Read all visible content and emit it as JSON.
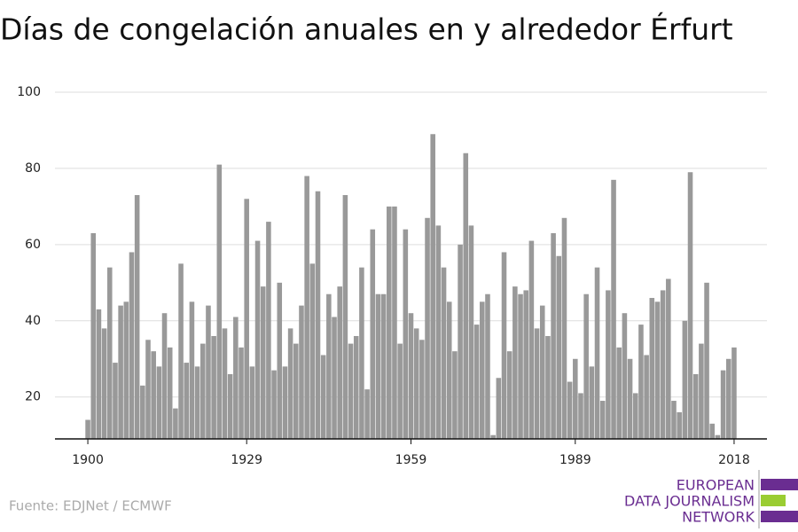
{
  "chart_data": {
    "type": "bar",
    "title": "Días de congelación anuales en y alrededor Érfurt",
    "source": "Fuente: EDJNet / ECMWF",
    "logo": [
      "EUROPEAN",
      "DATA JOURNALISM",
      "NETWORK"
    ],
    "color": "#999999",
    "x": [
      1900,
      1901,
      1902,
      1903,
      1904,
      1905,
      1906,
      1907,
      1908,
      1909,
      1910,
      1911,
      1912,
      1913,
      1914,
      1915,
      1916,
      1917,
      1918,
      1919,
      1920,
      1921,
      1922,
      1923,
      1924,
      1925,
      1926,
      1927,
      1928,
      1929,
      1930,
      1931,
      1932,
      1933,
      1934,
      1935,
      1936,
      1937,
      1938,
      1939,
      1940,
      1941,
      1942,
      1943,
      1944,
      1945,
      1946,
      1947,
      1948,
      1949,
      1950,
      1951,
      1952,
      1953,
      1954,
      1955,
      1956,
      1957,
      1958,
      1959,
      1960,
      1961,
      1962,
      1963,
      1964,
      1965,
      1966,
      1967,
      1968,
      1969,
      1970,
      1971,
      1972,
      1973,
      1974,
      1975,
      1976,
      1977,
      1978,
      1979,
      1980,
      1981,
      1982,
      1983,
      1984,
      1985,
      1986,
      1987,
      1988,
      1989,
      1990,
      1991,
      1992,
      1993,
      1994,
      1995,
      1996,
      1997,
      1998,
      1999,
      2000,
      2001,
      2002,
      2003,
      2004,
      2005,
      2006,
      2007,
      2008,
      2009,
      2010,
      2011,
      2012,
      2013,
      2014,
      2015,
      2016,
      2017,
      2018
    ],
    "values": [
      14,
      63,
      43,
      38,
      54,
      29,
      44,
      45,
      58,
      73,
      23,
      35,
      32,
      28,
      42,
      33,
      17,
      55,
      29,
      45,
      28,
      34,
      44,
      36,
      81,
      38,
      26,
      41,
      33,
      72,
      28,
      61,
      49,
      66,
      27,
      50,
      28,
      38,
      34,
      44,
      78,
      55,
      74,
      31,
      47,
      41,
      49,
      73,
      34,
      36,
      54,
      22,
      64,
      47,
      47,
      70,
      70,
      34,
      64,
      42,
      38,
      35,
      67,
      89,
      65,
      54,
      45,
      32,
      60,
      84,
      65,
      39,
      45,
      47,
      10,
      25,
      58,
      32,
      49,
      47,
      48,
      61,
      38,
      44,
      36,
      63,
      57,
      67,
      24,
      30,
      21,
      47,
      28,
      54,
      19,
      48,
      77,
      33,
      42,
      30,
      21,
      39,
      31,
      46,
      45,
      48,
      51,
      19,
      16,
      40,
      79,
      26,
      34,
      50,
      13,
      10,
      27,
      30,
      33
    ],
    "xlim": [
      1894,
      2024
    ],
    "xticks": [
      1900,
      1929,
      1959,
      1989,
      2018
    ],
    "ylim": [
      9,
      100
    ],
    "yticks": [
      20,
      40,
      60,
      80,
      100
    ],
    "grid": true
  }
}
